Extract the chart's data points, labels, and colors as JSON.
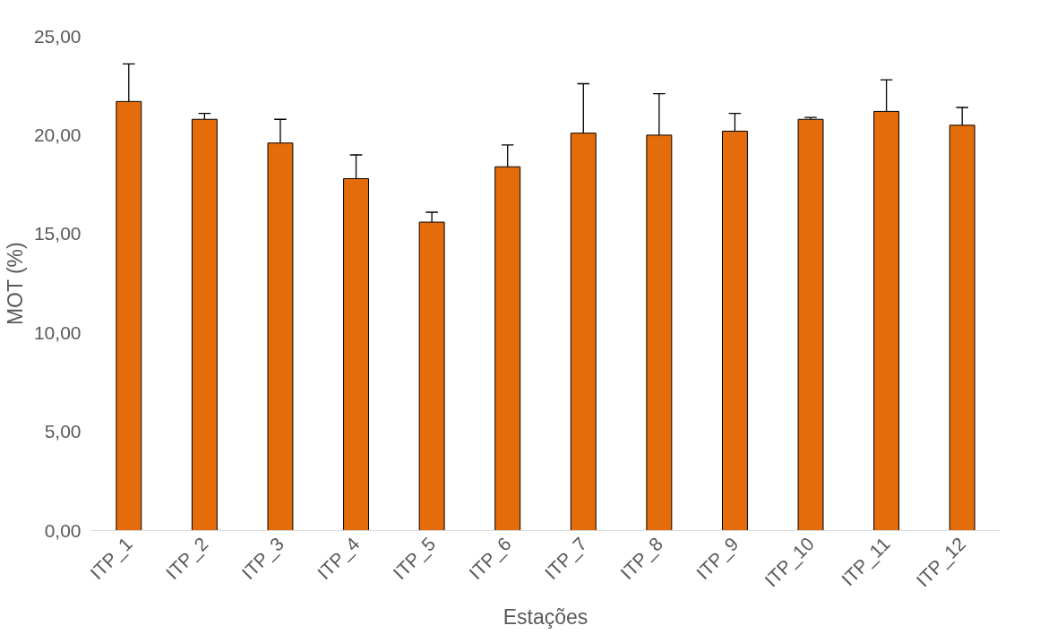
{
  "chart_data": {
    "type": "bar",
    "xlabel": "Estações",
    "ylabel": "MOT (%)",
    "categories": [
      "ITP_1",
      "ITP_2",
      "ITP_3",
      "ITP_4",
      "ITP_5",
      "ITP_6",
      "ITP_7",
      "ITP_8",
      "ITP_9",
      "ITP_10",
      "ITP_11",
      "ITP_12"
    ],
    "values": [
      21.7,
      20.8,
      19.6,
      17.8,
      15.6,
      18.4,
      20.1,
      20.0,
      20.2,
      20.8,
      21.2,
      20.5
    ],
    "errors": [
      [
        21.7,
        23.6
      ],
      [
        20.8,
        21.1
      ],
      [
        19.6,
        20.8
      ],
      [
        17.8,
        19.0
      ],
      [
        15.6,
        16.1
      ],
      [
        18.4,
        19.5
      ],
      [
        20.1,
        22.6
      ],
      [
        20.0,
        22.1
      ],
      [
        20.2,
        21.1
      ],
      [
        20.8,
        20.9
      ],
      [
        21.2,
        22.8
      ],
      [
        20.5,
        21.4
      ]
    ],
    "color": "#e46c0a",
    "ylim": [
      0,
      25
    ],
    "yticks": [
      {
        "value": 0,
        "label": "0,00"
      },
      {
        "value": 5,
        "label": "5,00"
      },
      {
        "value": 10,
        "label": "10,00"
      },
      {
        "value": 15,
        "label": "15,00"
      },
      {
        "value": 20,
        "label": "20,00"
      },
      {
        "value": 25,
        "label": "25,00"
      }
    ],
    "grid": false
  }
}
